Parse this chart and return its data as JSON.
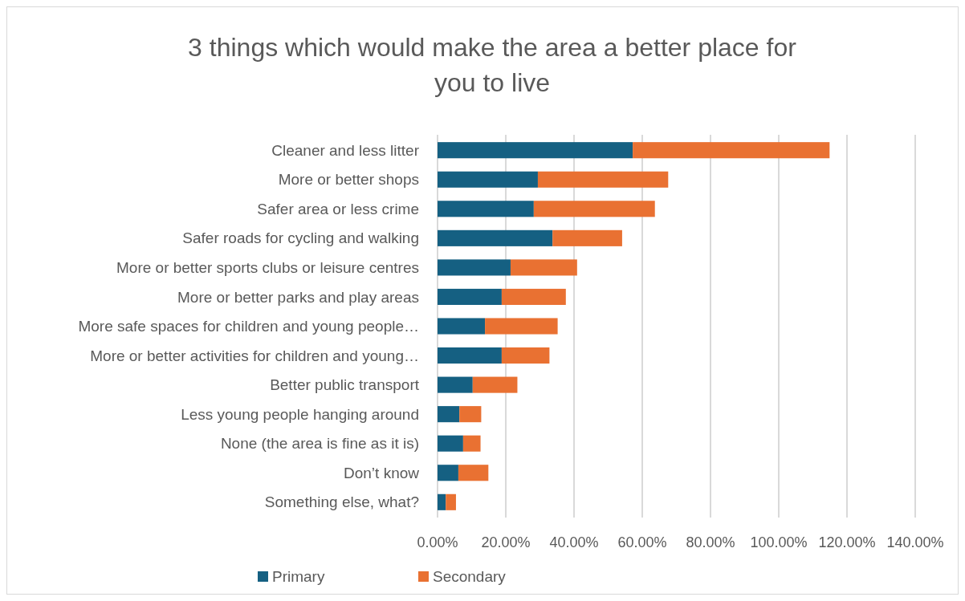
{
  "chart_data": {
    "type": "bar",
    "orientation": "horizontal",
    "stacked": true,
    "title": "3 things which would make the area a better place for you to live",
    "categories": [
      "Cleaner and less litter",
      "More or better shops",
      "Safer area or less crime",
      "Safer roads for cycling and walking",
      "More or better sports clubs or leisure centres",
      "More or better parks and play areas",
      "More safe spaces for children and young people…",
      "More or better activities for children and young…",
      "Better public transport",
      "Less young people hanging around",
      "None (the area is fine as it is)",
      "Don’t know",
      "Something else, what?"
    ],
    "series": [
      {
        "name": "Primary",
        "color": "#156082",
        "values": [
          57.2,
          29.4,
          28.2,
          33.7,
          21.4,
          18.8,
          13.9,
          18.8,
          10.3,
          6.4,
          7.5,
          6.1,
          2.4
        ]
      },
      {
        "name": "Secondary",
        "color": "#e97132",
        "values": [
          57.7,
          38.2,
          35.5,
          20.4,
          19.5,
          18.8,
          21.3,
          14.0,
          13.1,
          6.4,
          5.1,
          8.8,
          3.0
        ]
      }
    ],
    "xlim": [
      0,
      140
    ],
    "xticks": [
      {
        "value": 0,
        "label": "0.00%"
      },
      {
        "value": 20,
        "label": "20.00%"
      },
      {
        "value": 40,
        "label": "40.00%"
      },
      {
        "value": 60,
        "label": "60.00%"
      },
      {
        "value": 80,
        "label": "80.00%"
      },
      {
        "value": 100,
        "label": "100.00%"
      },
      {
        "value": 120,
        "label": "120.00%"
      },
      {
        "value": 140,
        "label": "140.00%"
      }
    ],
    "grid": "x",
    "legend": "bottom"
  }
}
